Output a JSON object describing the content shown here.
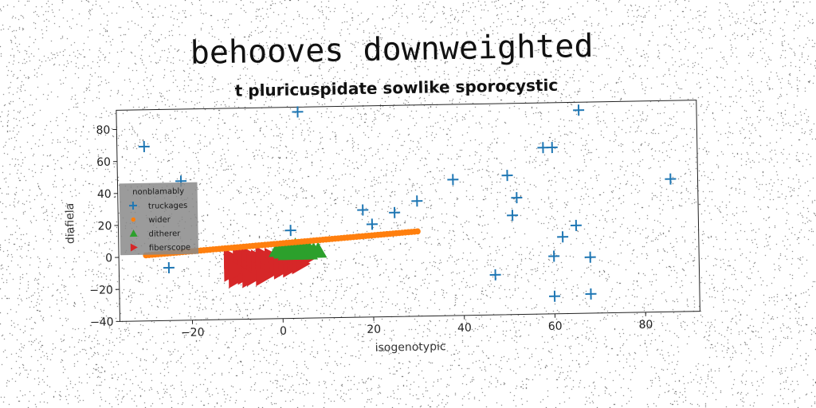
{
  "chart_data": {
    "type": "scatter",
    "title": "behooves downweighted",
    "subtitle": "t pluricuspidate sowlike sporocystic",
    "xlabel": "isogenotypic",
    "ylabel": "diafiela",
    "xlim": [
      -36,
      92
    ],
    "ylim": [
      -40,
      92
    ],
    "xticks": [
      -20,
      0,
      20,
      40,
      60,
      80
    ],
    "yticks": [
      -40,
      -20,
      0,
      20,
      40,
      60,
      80
    ],
    "grid": false,
    "legend": {
      "title": "nonblamably",
      "placement": "center-left"
    },
    "series": [
      {
        "name": "truckages",
        "marker": "plus",
        "color": "#1f77b4",
        "points": [
          [
            -30,
            69
          ],
          [
            -25,
            -7
          ],
          [
            -22,
            47
          ],
          [
            4,
            89
          ],
          [
            2,
            15
          ],
          [
            18,
            27
          ],
          [
            20,
            18
          ],
          [
            25,
            25
          ],
          [
            30,
            32
          ],
          [
            38,
            45
          ],
          [
            47,
            -15
          ],
          [
            50,
            47
          ],
          [
            51,
            22
          ],
          [
            52,
            33
          ],
          [
            58,
            64
          ],
          [
            60,
            64
          ],
          [
            60,
            -4
          ],
          [
            60,
            -29
          ],
          [
            62,
            8
          ],
          [
            65,
            15
          ],
          [
            66,
            87
          ],
          [
            68,
            -5
          ],
          [
            68,
            -28
          ],
          [
            86,
            43
          ]
        ]
      },
      {
        "name": "wider",
        "marker": "circle",
        "color": "#ff7f0e",
        "x_range": [
          -30,
          30
        ],
        "y_range": [
          1,
          13
        ],
        "count": 90
      },
      {
        "name": "ditherer",
        "marker": "triangle-up",
        "color": "#2ca02c",
        "points": [
          [
            -1,
            3
          ],
          [
            0,
            2
          ],
          [
            1,
            4
          ],
          [
            2,
            3
          ],
          [
            2,
            1
          ],
          [
            3,
            2
          ],
          [
            3,
            5
          ],
          [
            4,
            3
          ],
          [
            5,
            2
          ],
          [
            5,
            4
          ],
          [
            6,
            3
          ],
          [
            6,
            1
          ],
          [
            7,
            2
          ],
          [
            8,
            2
          ],
          [
            4,
            1
          ],
          [
            1,
            1
          ]
        ]
      },
      {
        "name": "fiberscope",
        "marker": "triangle-right",
        "color": "#d62728",
        "points": [
          [
            -11,
            -2
          ],
          [
            -11,
            -10
          ],
          [
            -10,
            -5
          ],
          [
            -10,
            -14
          ],
          [
            -9,
            0
          ],
          [
            -9,
            -8
          ],
          [
            -8,
            -4
          ],
          [
            -8,
            -12
          ],
          [
            -7,
            -1
          ],
          [
            -7,
            -9
          ],
          [
            -6,
            -6
          ],
          [
            -6,
            -13
          ],
          [
            -5,
            -3
          ],
          [
            -5,
            -10
          ],
          [
            -4,
            -1
          ],
          [
            -4,
            -7
          ],
          [
            -3,
            -4
          ],
          [
            -3,
            -11
          ],
          [
            -2,
            -2
          ],
          [
            -2,
            -8
          ],
          [
            -1,
            -5
          ],
          [
            0,
            -3
          ],
          [
            0,
            -9
          ],
          [
            1,
            -6
          ],
          [
            2,
            -2
          ],
          [
            2,
            -8
          ],
          [
            3,
            -4
          ],
          [
            4,
            -6
          ],
          [
            5,
            -3
          ],
          [
            -10,
            -9
          ],
          [
            -7,
            -14
          ],
          [
            -4,
            -13
          ]
        ]
      }
    ]
  }
}
